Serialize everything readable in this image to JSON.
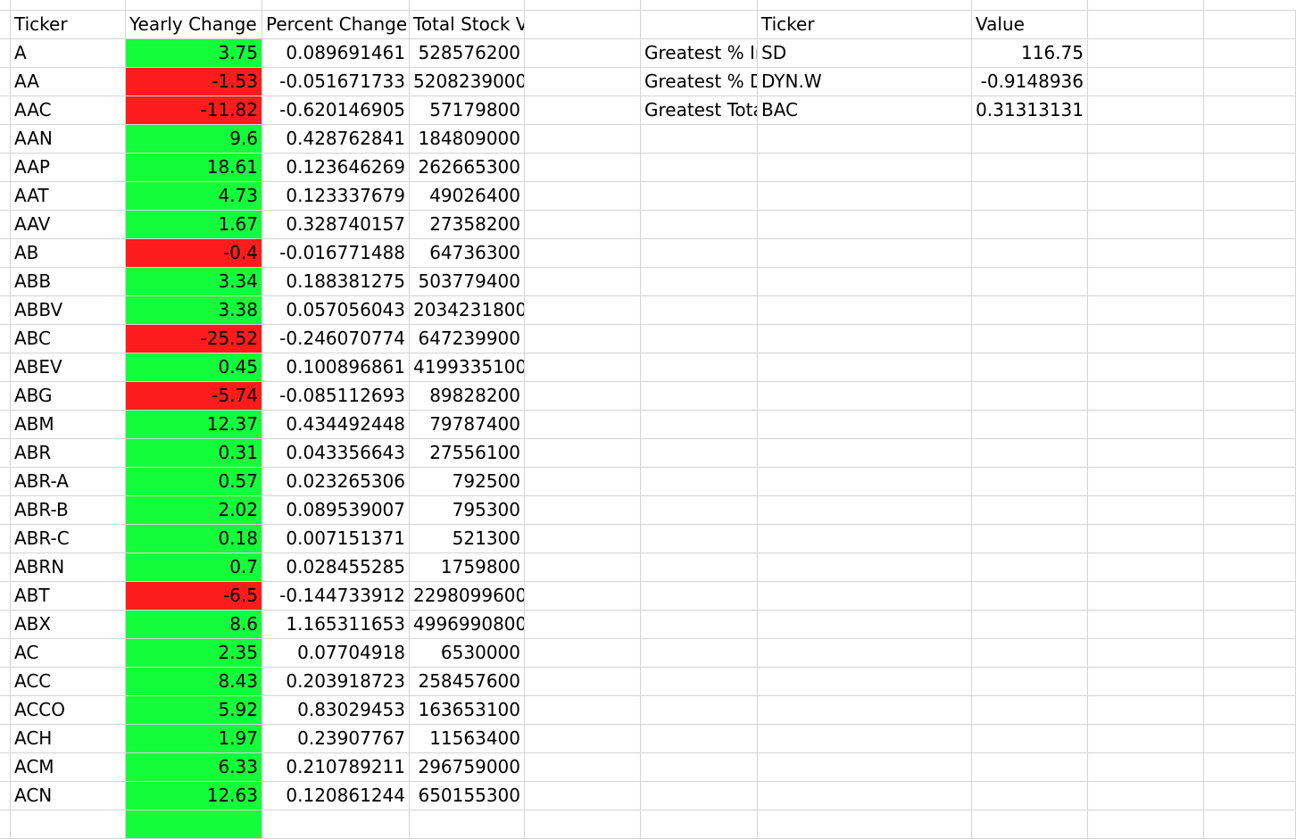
{
  "colors": {
    "positive": "#14fd3a",
    "negative": "#fc1c1c",
    "grid": "#d4d4d4"
  },
  "headers": [
    "Ticker",
    "Yearly Change",
    "Percent Change",
    "Total Stock Volume"
  ],
  "rows": [
    [
      "A",
      "3.75",
      "0.089691461",
      "528576200"
    ],
    [
      "AA",
      "-1.53",
      "-0.051671733",
      "5208239000"
    ],
    [
      "AAC",
      "-11.82",
      "-0.620146905",
      "57179800"
    ],
    [
      "AAN",
      "9.6",
      "0.428762841",
      "184809000"
    ],
    [
      "AAP",
      "18.61",
      "0.123646269",
      "262665300"
    ],
    [
      "AAT",
      "4.73",
      "0.123337679",
      "49026400"
    ],
    [
      "AAV",
      "1.67",
      "0.328740157",
      "27358200"
    ],
    [
      "AB",
      "-0.4",
      "-0.016771488",
      "64736300"
    ],
    [
      "ABB",
      "3.34",
      "0.188381275",
      "503779400"
    ],
    [
      "ABBV",
      "3.38",
      "0.057056043",
      "2034231800"
    ],
    [
      "ABC",
      "-25.52",
      "-0.246070774",
      "647239900"
    ],
    [
      "ABEV",
      "0.45",
      "0.100896861",
      "4199335100"
    ],
    [
      "ABG",
      "-5.74",
      "-0.085112693",
      "89828200"
    ],
    [
      "ABM",
      "12.37",
      "0.434492448",
      "79787400"
    ],
    [
      "ABR",
      "0.31",
      "0.043356643",
      "27556100"
    ],
    [
      "ABR-A",
      "0.57",
      "0.023265306",
      "792500"
    ],
    [
      "ABR-B",
      "2.02",
      "0.089539007",
      "795300"
    ],
    [
      "ABR-C",
      "0.18",
      "0.007151371",
      "521300"
    ],
    [
      "ABRN",
      "0.7",
      "0.028455285",
      "1759800"
    ],
    [
      "ABT",
      "-6.5",
      "-0.144733912",
      "2298099600"
    ],
    [
      "ABX",
      "8.6",
      "1.165311653",
      "4996990800"
    ],
    [
      "AC",
      "2.35",
      "0.07704918",
      "6530000"
    ],
    [
      "ACC",
      "8.43",
      "0.203918723",
      "258457600"
    ],
    [
      "ACCO",
      "5.92",
      "0.83029453",
      "163653100"
    ],
    [
      "ACH",
      "1.97",
      "0.23907767",
      "11563400"
    ],
    [
      "ACM",
      "6.33",
      "0.210789211",
      "296759000"
    ],
    [
      "ACN",
      "12.63",
      "0.120861244",
      "650155300"
    ]
  ],
  "summary": {
    "headers": [
      "",
      "Ticker",
      "Value"
    ],
    "rows": [
      [
        "Greatest % Increase",
        "SD",
        "116.75"
      ],
      [
        "Greatest % Decrease",
        "DYN.W",
        "-0.9148936"
      ],
      [
        "Greatest Total Volume",
        "BAC",
        "0.31313131"
      ]
    ]
  }
}
